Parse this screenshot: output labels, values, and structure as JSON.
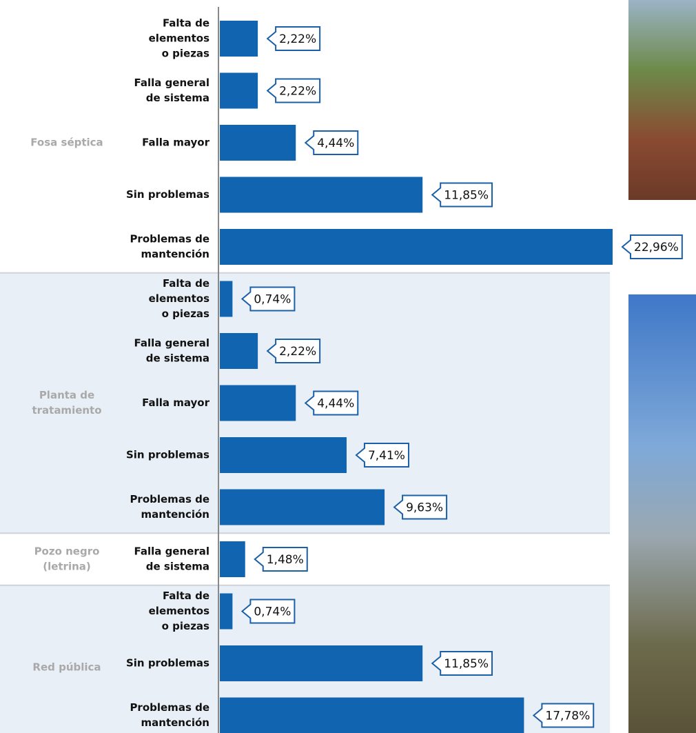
{
  "chart_data": {
    "type": "bar",
    "orientation": "horizontal",
    "color": "#1064b0",
    "xlim": [
      0,
      23
    ],
    "groups": [
      {
        "name": [
          "Fosa séptica"
        ],
        "categories": [
          [
            "Falta de",
            "elementos",
            "o piezas"
          ],
          [
            "Falla general",
            "de sistema"
          ],
          [
            "Falla mayor"
          ],
          [
            "Sin problemas"
          ],
          [
            "Problemas de",
            "mantención"
          ]
        ],
        "values": [
          2.22,
          2.22,
          4.44,
          11.85,
          22.96
        ],
        "value_labels": [
          "2,22%",
          "2,22%",
          "4,44%",
          "11,85%",
          "22,96%"
        ]
      },
      {
        "name": [
          "Planta de",
          "tratamiento"
        ],
        "categories": [
          [
            "Falta de",
            "elementos",
            "o piezas"
          ],
          [
            "Falla general",
            "de sistema"
          ],
          [
            "Falla mayor"
          ],
          [
            "Sin problemas"
          ],
          [
            "Problemas de",
            "mantención"
          ]
        ],
        "values": [
          0.74,
          2.22,
          4.44,
          7.41,
          9.63
        ],
        "value_labels": [
          "0,74%",
          "2,22%",
          "4,44%",
          "7,41%",
          "9,63%"
        ]
      },
      {
        "name": [
          "Pozo negro",
          "(letrina)"
        ],
        "categories": [
          [
            "Falla general",
            "de sistema"
          ]
        ],
        "values": [
          1.48
        ],
        "value_labels": [
          "1,48%"
        ]
      },
      {
        "name": [
          "Red pública"
        ],
        "categories": [
          [
            "Falta de",
            "elementos",
            "o piezas"
          ],
          [
            "Sin problemas"
          ],
          [
            "Problemas de",
            "mantención"
          ]
        ],
        "values": [
          0.74,
          11.85,
          17.78
        ],
        "value_labels": [
          "0,74%",
          "11,85%",
          "17,78%"
        ]
      }
    ]
  }
}
